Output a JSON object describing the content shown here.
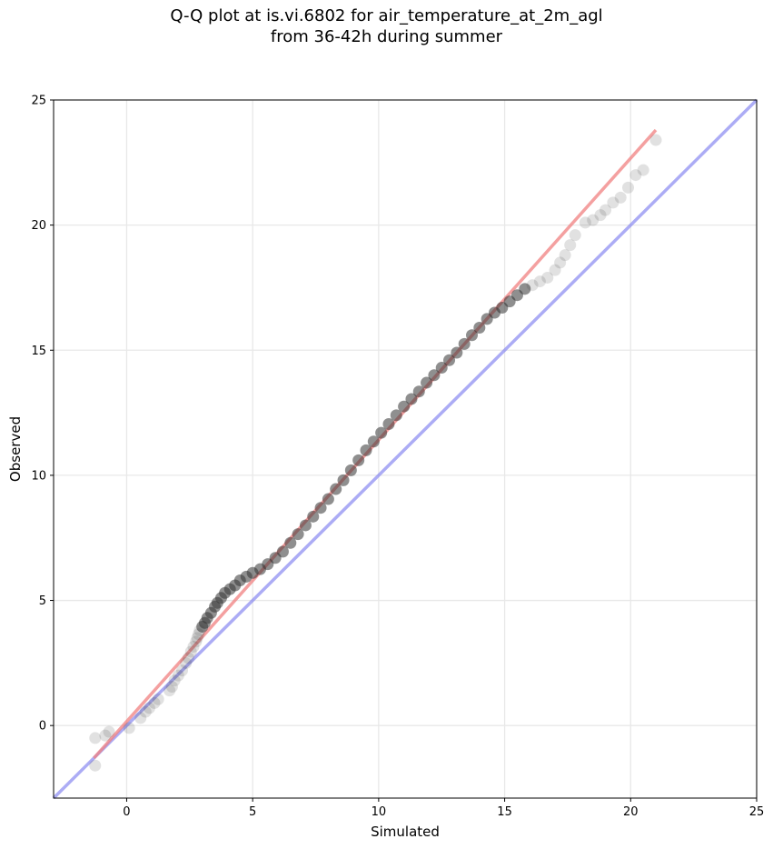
{
  "chart_data": {
    "type": "scatter",
    "title_line1": "Q-Q plot at is.vi.6802 for air_temperature_at_2m_agl",
    "title_line2": "from 36-42h during summer",
    "xlabel": "Simulated",
    "ylabel": "Observed",
    "xlim": [
      -2.9,
      25
    ],
    "ylim": [
      -2.9,
      25
    ],
    "xticks": [
      0,
      5,
      10,
      15,
      20,
      25
    ],
    "yticks": [
      0,
      5,
      10,
      15,
      20,
      25
    ],
    "grid": true,
    "colors": {
      "points": "#333333",
      "fit_line": "#f08080",
      "identity_line": "#8080f0",
      "grid": "#e8e8e8"
    },
    "identity_line": {
      "x": [
        -2.9,
        25
      ],
      "y": [
        -2.9,
        25
      ]
    },
    "fit_line": {
      "x": [
        -1.3,
        21.0
      ],
      "y": [
        -1.3,
        23.8
      ]
    },
    "points": {
      "x": [
        -1.25,
        -1.25,
        -0.85,
        -0.7,
        0.1,
        0.55,
        0.75,
        0.9,
        1.1,
        1.25,
        1.7,
        1.8,
        1.9,
        2.05,
        2.2,
        2.35,
        2.45,
        2.55,
        2.65,
        2.75,
        2.8,
        2.85,
        2.9,
        3.0,
        3.1,
        3.2,
        3.35,
        3.5,
        3.6,
        3.75,
        3.9,
        4.1,
        4.3,
        4.5,
        4.75,
        5.0,
        5.3,
        5.6,
        5.9,
        6.2,
        6.5,
        6.8,
        7.1,
        7.4,
        7.7,
        8.0,
        8.3,
        8.6,
        8.9,
        9.2,
        9.5,
        9.8,
        10.1,
        10.4,
        10.7,
        11.0,
        11.3,
        11.6,
        11.9,
        12.2,
        12.5,
        12.8,
        13.1,
        13.4,
        13.7,
        14.0,
        14.3,
        14.6,
        14.9,
        15.2,
        15.5,
        15.8,
        16.1,
        16.4,
        16.7,
        17.0,
        17.2,
        17.4,
        17.6,
        17.8,
        18.2,
        18.5,
        18.8,
        19.0,
        19.3,
        19.6,
        19.9,
        20.2,
        20.5,
        21.0
      ],
      "y": [
        -0.5,
        -1.6,
        -0.4,
        -0.25,
        -0.1,
        0.3,
        0.55,
        0.7,
        0.9,
        1.05,
        1.4,
        1.55,
        1.8,
        2.0,
        2.2,
        2.5,
        2.7,
        2.95,
        3.15,
        3.35,
        3.5,
        3.65,
        3.8,
        3.95,
        4.1,
        4.3,
        4.5,
        4.75,
        4.9,
        5.1,
        5.3,
        5.45,
        5.6,
        5.8,
        5.95,
        6.1,
        6.25,
        6.45,
        6.7,
        6.95,
        7.3,
        7.65,
        8.0,
        8.35,
        8.7,
        9.05,
        9.45,
        9.8,
        10.2,
        10.6,
        11.0,
        11.35,
        11.7,
        12.05,
        12.4,
        12.75,
        13.05,
        13.35,
        13.7,
        14.0,
        14.3,
        14.6,
        14.9,
        15.25,
        15.6,
        15.9,
        16.25,
        16.5,
        16.7,
        16.95,
        17.2,
        17.45,
        17.6,
        17.75,
        17.9,
        18.2,
        18.5,
        18.8,
        19.2,
        19.6,
        20.1,
        20.2,
        20.4,
        20.6,
        20.9,
        21.1,
        21.5,
        22.0,
        22.2,
        23.4
      ]
    }
  }
}
